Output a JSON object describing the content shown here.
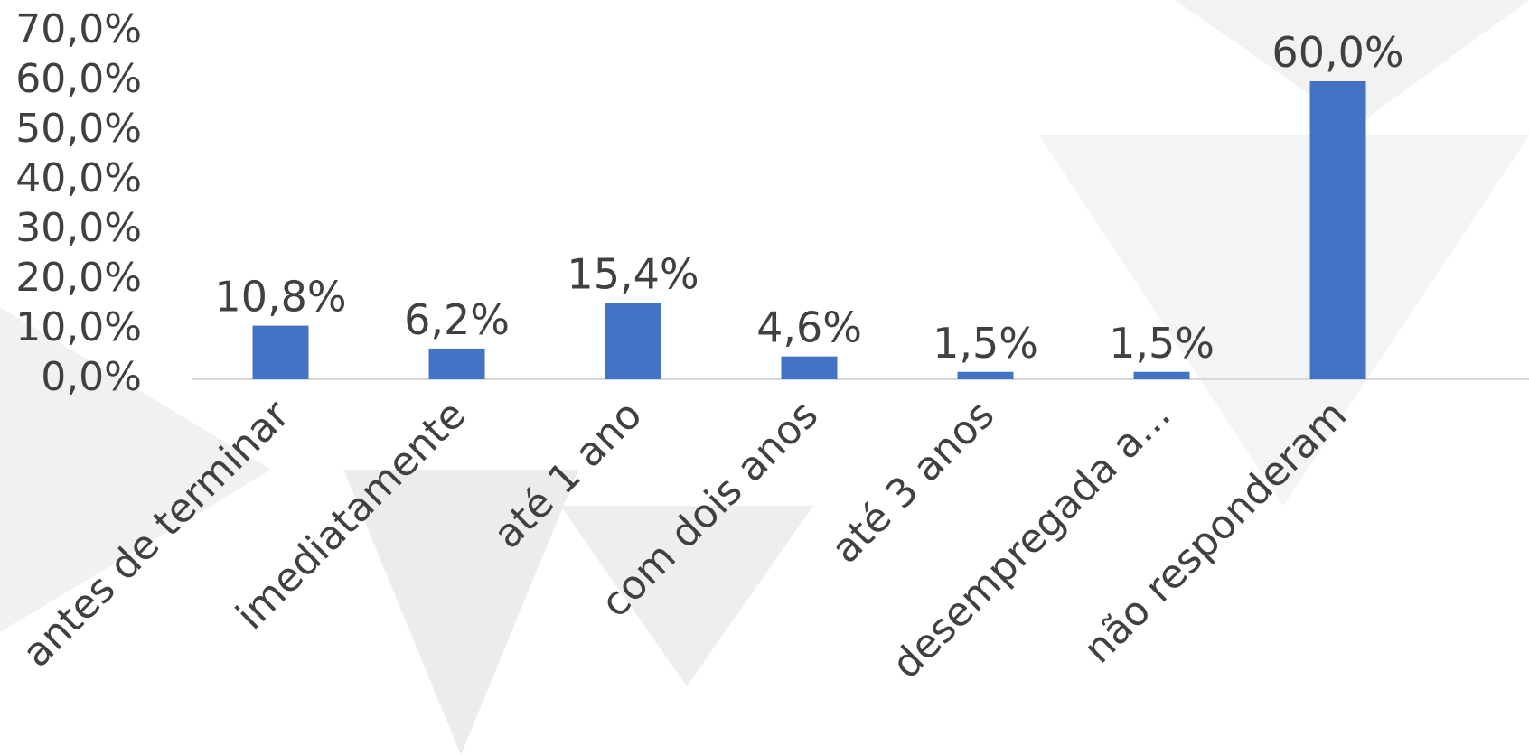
{
  "chart_data": {
    "type": "bar",
    "categories": [
      "antes de terminar",
      "imediatamente",
      "até 1 ano",
      "com dois anos",
      "até 3 anos",
      "desempregada a...",
      "não responderam"
    ],
    "values": [
      10.8,
      6.2,
      15.4,
      4.6,
      1.5,
      1.5,
      60.0
    ],
    "value_labels": [
      "10,8%",
      "6,2%",
      "15,4%",
      "4,6%",
      "1,5%",
      "1,5%",
      "60,0%"
    ],
    "color": "#4472c4",
    "ylim": [
      0,
      70
    ],
    "yticks": [
      {
        "value": 0,
        "label": "0,0%"
      },
      {
        "value": 10,
        "label": "10,0%"
      },
      {
        "value": 20,
        "label": "20,0%"
      },
      {
        "value": 30,
        "label": "30,0%"
      },
      {
        "value": 40,
        "label": "40,0%"
      },
      {
        "value": 50,
        "label": "50,0%"
      },
      {
        "value": 60,
        "label": "60,0%"
      },
      {
        "value": 70,
        "label": "70,0%"
      }
    ],
    "grid": false
  }
}
